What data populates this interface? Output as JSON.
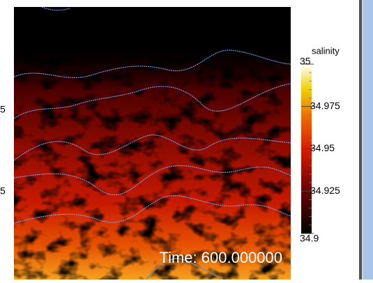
{
  "colorbar": {
    "title": "salinity",
    "lim": [
      34.9,
      35
    ],
    "ticks": [
      35,
      34.975,
      34.95,
      34.925,
      34.9
    ]
  },
  "time_label": "Time: 600.000000",
  "left_labels": [
    "5",
    "5"
  ]
}
